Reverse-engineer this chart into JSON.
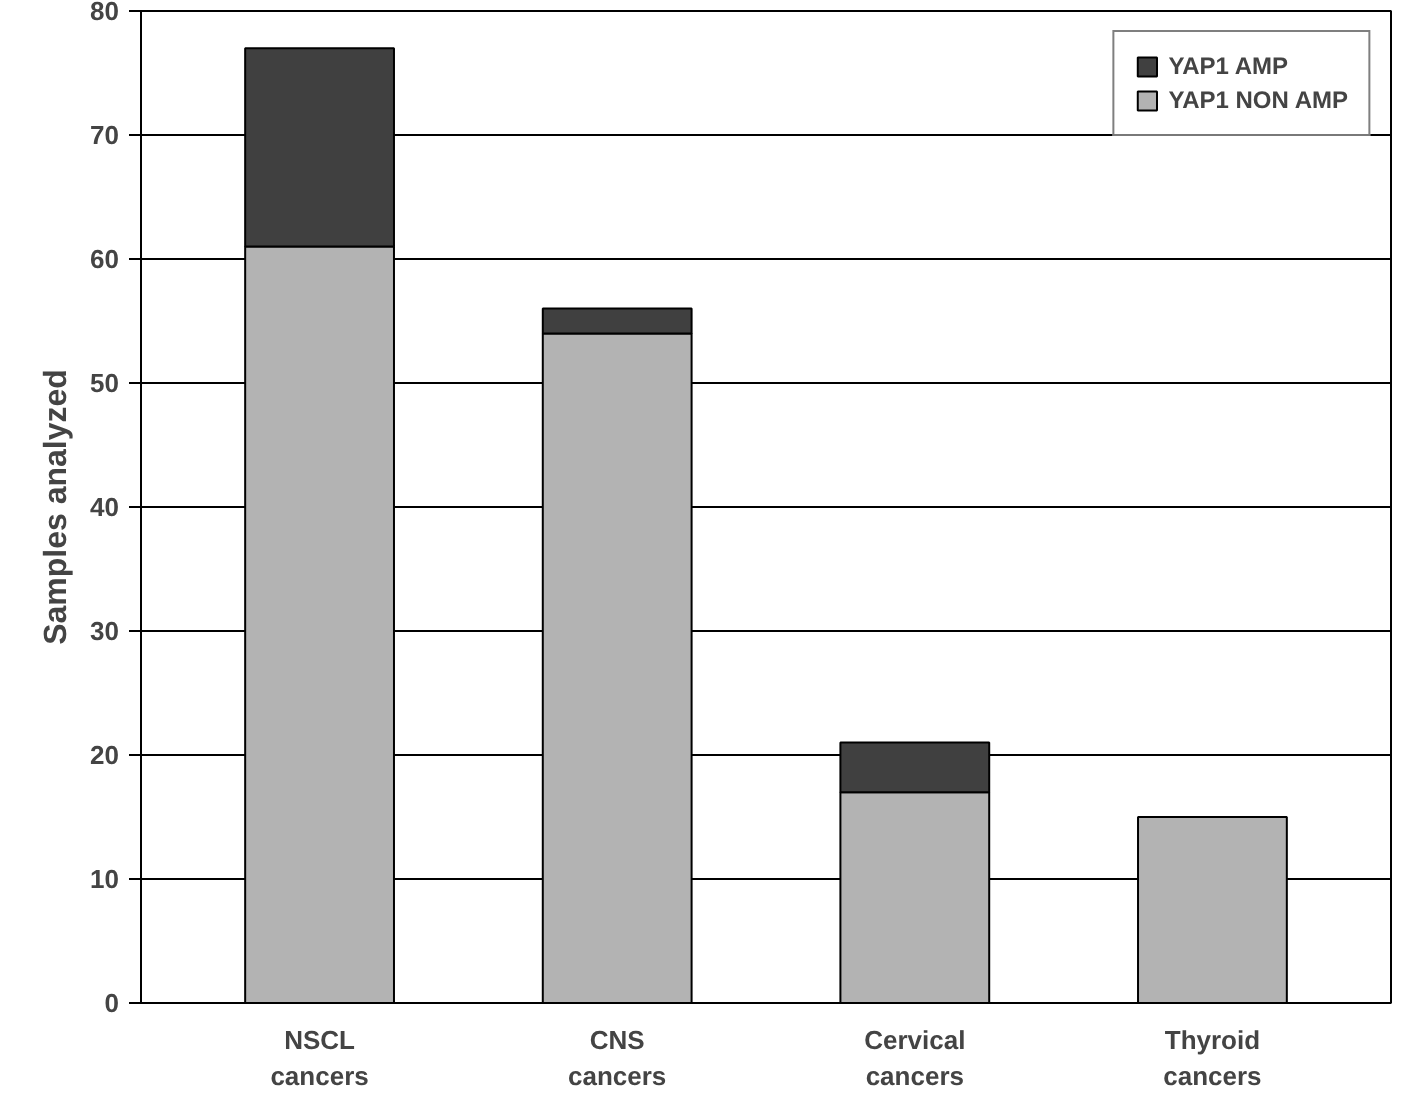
{
  "chart_data": {
    "type": "bar",
    "stacked": true,
    "ylabel": "Samples analyzed",
    "categories": [
      "NSCL\ncancers",
      "CNS\ncancers",
      "Cervical\ncancers",
      "Thyroid\ncancers"
    ],
    "series": [
      {
        "name": "YAP1 NON AMP",
        "color": "#b3b3b3",
        "values": [
          61,
          54,
          17,
          15
        ]
      },
      {
        "name": "YAP1 AMP",
        "color": "#404040",
        "values": [
          16,
          2,
          4,
          0
        ]
      }
    ],
    "ylim": [
      0,
      80
    ],
    "yticks": [
      0,
      10,
      20,
      30,
      40,
      50,
      60,
      70,
      80
    ],
    "grid": "y",
    "legend": "top right"
  }
}
